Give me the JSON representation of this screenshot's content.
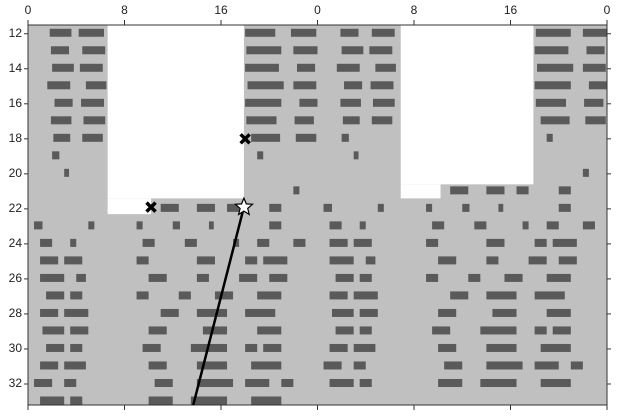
{
  "chart_data": {
    "type": "actogram",
    "xlim": [
      0,
      48
    ],
    "xticks": [
      {
        "value": 0,
        "label": "0"
      },
      {
        "value": 8,
        "label": "8"
      },
      {
        "value": 16,
        "label": "16"
      },
      {
        "value": 24,
        "label": "0"
      },
      {
        "value": 32,
        "label": "8"
      },
      {
        "value": 40,
        "label": "16"
      },
      {
        "value": 48,
        "label": "0"
      }
    ],
    "ylim": [
      11.5,
      33.2
    ],
    "yticks": [
      12,
      14,
      16,
      18,
      20,
      22,
      24,
      26,
      28,
      30,
      32
    ],
    "dark_color": "#c0c0c0",
    "light_color": "#ffffff",
    "activity_color": "#5a5a5a",
    "light_periods": [
      {
        "x": [
          6.6,
          17.9
        ],
        "y": [
          11.5,
          21.4
        ]
      },
      {
        "x": [
          6.6,
          10.2
        ],
        "y": [
          21.4,
          22.3
        ]
      },
      {
        "x": [
          30.9,
          41.9
        ],
        "y": [
          11.5,
          20.6
        ]
      },
      {
        "x": [
          30.9,
          34.2
        ],
        "y": [
          20.6,
          21.4
        ]
      }
    ],
    "days": [
      {
        "day": 12,
        "bouts": [
          [
            1.8,
            3.6
          ],
          [
            4.2,
            6.3
          ],
          [
            18,
            20.5
          ],
          [
            21.8,
            23.9
          ]
        ]
      },
      {
        "day": 13,
        "bouts": [
          [
            1.9,
            3.4
          ],
          [
            4.5,
            6.4
          ],
          [
            18.1,
            21
          ],
          [
            22,
            24
          ]
        ]
      },
      {
        "day": 14,
        "bouts": [
          [
            2,
            3.8
          ],
          [
            4.3,
            6.2
          ],
          [
            18,
            20.8
          ],
          [
            22.3,
            23.8
          ]
        ]
      },
      {
        "day": 15,
        "bouts": [
          [
            1.6,
            3.5
          ],
          [
            4.8,
            6.5
          ],
          [
            18.2,
            21.2
          ],
          [
            22,
            23.9
          ]
        ]
      },
      {
        "day": 16,
        "bouts": [
          [
            2.2,
            3.7
          ],
          [
            4.4,
            6.3
          ],
          [
            18,
            21
          ],
          [
            22.5,
            24
          ]
        ]
      },
      {
        "day": 17,
        "bouts": [
          [
            1.9,
            3.6
          ],
          [
            4.6,
            6.4
          ],
          [
            18.1,
            20.6
          ],
          [
            22.1,
            23.7
          ]
        ]
      },
      {
        "day": 18,
        "bouts": [
          [
            2.1,
            3.5
          ],
          [
            4.5,
            6.2
          ],
          [
            18.5,
            20.9
          ],
          [
            22.2,
            23.9
          ]
        ]
      },
      {
        "day": 19,
        "bouts": [
          [
            2,
            2.6
          ],
          [
            19,
            19.5
          ]
        ]
      },
      {
        "day": 20,
        "bouts": [
          [
            3,
            3.4
          ]
        ]
      },
      {
        "day": 21,
        "bouts": [
          [
            22,
            22.5
          ]
        ]
      },
      {
        "day": 22,
        "bouts": [
          [
            11,
            12.5
          ],
          [
            14,
            15.5
          ],
          [
            16.5,
            17.5
          ],
          [
            20,
            21
          ]
        ]
      },
      {
        "day": 23,
        "bouts": [
          [
            0.5,
            1.2
          ],
          [
            5,
            5.5
          ],
          [
            9,
            9.5
          ],
          [
            12,
            12.6
          ],
          [
            15,
            15.4
          ],
          [
            20,
            21
          ]
        ]
      },
      {
        "day": 24,
        "bouts": [
          [
            1,
            2
          ],
          [
            3.5,
            4
          ],
          [
            9.5,
            10.5
          ],
          [
            13,
            14
          ],
          [
            17,
            17.5
          ],
          [
            19,
            20
          ],
          [
            22,
            23
          ]
        ]
      },
      {
        "day": 25,
        "bouts": [
          [
            1,
            2.5
          ],
          [
            3,
            4.5
          ],
          [
            9,
            10
          ],
          [
            14,
            15.5
          ],
          [
            18,
            19
          ],
          [
            19.5,
            21.5
          ]
        ]
      },
      {
        "day": 26,
        "bouts": [
          [
            1,
            3
          ],
          [
            4,
            4.8
          ],
          [
            10,
            11.5
          ],
          [
            14,
            15
          ],
          [
            17.5,
            19
          ],
          [
            20,
            21.5
          ]
        ]
      },
      {
        "day": 27,
        "bouts": [
          [
            1.5,
            3
          ],
          [
            3.5,
            4.5
          ],
          [
            9,
            10
          ],
          [
            12.5,
            13.5
          ],
          [
            15.5,
            17
          ],
          [
            19,
            21
          ]
        ]
      },
      {
        "day": 28,
        "bouts": [
          [
            1,
            2.5
          ],
          [
            3,
            5
          ],
          [
            11,
            12.5
          ],
          [
            14,
            16.5
          ],
          [
            18,
            20.5
          ]
        ]
      },
      {
        "day": 29,
        "bouts": [
          [
            1.2,
            3
          ],
          [
            3.5,
            5
          ],
          [
            10,
            11.5
          ],
          [
            14.5,
            16.5
          ],
          [
            19,
            21
          ]
        ]
      },
      {
        "day": 30,
        "bouts": [
          [
            1.5,
            3
          ],
          [
            3.5,
            4.5
          ],
          [
            9.5,
            11
          ],
          [
            13.5,
            16.5
          ],
          [
            18,
            19
          ],
          [
            19.5,
            21
          ]
        ]
      },
      {
        "day": 31,
        "bouts": [
          [
            1,
            2.5
          ],
          [
            3,
            4.8
          ],
          [
            10,
            11.5
          ],
          [
            14,
            16.5
          ],
          [
            18.5,
            21
          ]
        ]
      },
      {
        "day": 32,
        "bouts": [
          [
            0.5,
            2
          ],
          [
            3,
            4
          ],
          [
            10.5,
            12
          ],
          [
            14,
            17
          ],
          [
            18,
            20
          ],
          [
            21,
            22
          ]
        ]
      },
      {
        "day": 33,
        "bouts": [
          [
            1,
            3
          ],
          [
            3.5,
            4.5
          ],
          [
            10,
            12
          ],
          [
            13.5,
            16.5
          ],
          [
            18.5,
            21
          ]
        ]
      }
    ],
    "markers": [
      {
        "shape": "cross",
        "x": 18,
        "y": 18
      },
      {
        "shape": "cross",
        "x": 10.2,
        "y": 21.9
      },
      {
        "shape": "star",
        "x": 17.9,
        "y": 21.9
      }
    ],
    "line": {
      "x": [
        17.9,
        13.7
      ],
      "y": [
        21.9,
        33.2
      ]
    }
  }
}
